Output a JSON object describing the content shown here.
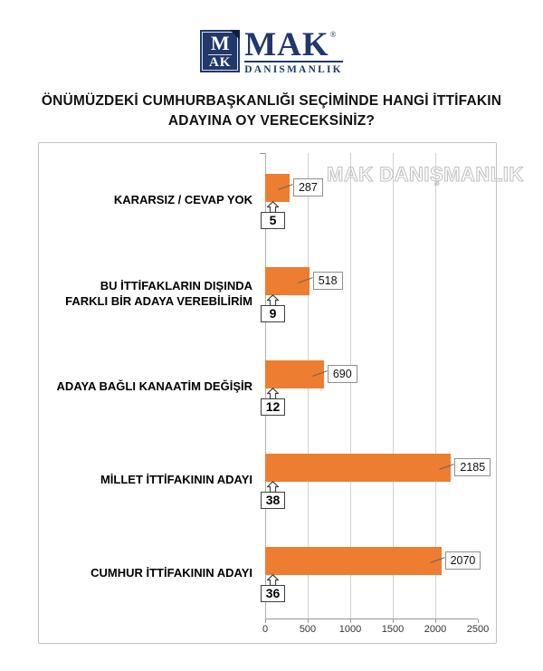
{
  "logo": {
    "mark_line1": "M",
    "mark_line2": "AK",
    "brand": "MAK",
    "registered": "®",
    "subtitle": "DANISMANLIK",
    "navy": "#20386b"
  },
  "title": {
    "line1": "ÖNÜMÜZDEKİ CUMHURBAŞKANLIĞI SEÇİMİNDE HANGİ İTTİFAKIN",
    "line2": "ADAYINA OY VERECEKSİNİZ?"
  },
  "watermark": "MAK DANIŞMANLIK",
  "chart_data": {
    "type": "bar",
    "orientation": "horizontal",
    "title": "ÖNÜMÜZDEKİ CUMHURBAŞKANLIĞI SEÇİMİNDE HANGİ İTTİFAKIN ADAYINA OY VERECEKSİNİZ?",
    "categories": [
      "KARARSIZ / CEVAP YOK",
      "BU İTTİFAKLARIN DIŞINDA FARKLI BİR ADAYA VEREBİLİRİM",
      "ADAYA BAĞLI KANAATİM DEĞİŞİR",
      "MİLLET İTTİFAKININ ADAYI",
      "CUMHUR İTTİFAKININ ADAYI"
    ],
    "values": [
      287,
      518,
      690,
      2185,
      2070
    ],
    "percentages": [
      5,
      9,
      12,
      38,
      36
    ],
    "bar_color": "#ED7D31",
    "xlabel": "",
    "ylabel": "",
    "xlim": [
      0,
      2500
    ],
    "x_ticks": [
      "0",
      "500",
      "1000",
      "1500",
      "2000",
      "2500"
    ],
    "grid": true,
    "legend": false
  },
  "rows": [
    {
      "label_line1": "KARARSIZ / CEVAP YOK",
      "label_line2": "",
      "value": "287",
      "pct": "5"
    },
    {
      "label_line1": "BU İTTİFAKLARIN DIŞINDA",
      "label_line2": "FARKLI BİR ADAYA VEREBİLİRİM",
      "value": "518",
      "pct": "9"
    },
    {
      "label_line1": "ADAYA BAĞLI KANAATİM DEĞİŞİR",
      "label_line2": "",
      "value": "690",
      "pct": "12"
    },
    {
      "label_line1": "MİLLET İTTİFAKININ ADAYI",
      "label_line2": "",
      "value": "2185",
      "pct": "38"
    },
    {
      "label_line1": "CUMHUR İTTİFAKININ ADAYI",
      "label_line2": "",
      "value": "2070",
      "pct": "36"
    }
  ]
}
